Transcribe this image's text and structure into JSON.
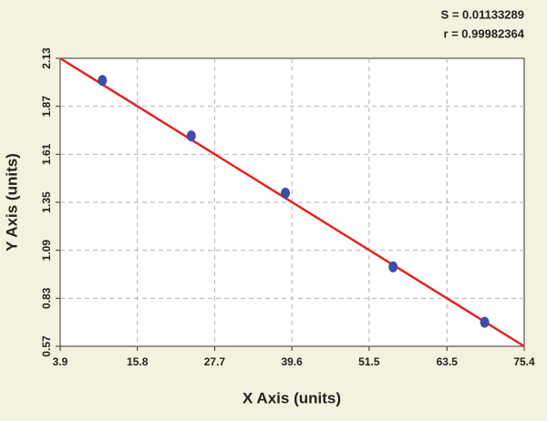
{
  "chart_data": {
    "type": "scatter",
    "annotations": [
      "S = 0.01133289",
      "r = 0.99982364"
    ],
    "x_label": "X Axis (units)",
    "y_label": "Y Axis (units)",
    "xlim": [
      3.9,
      75.4
    ],
    "ylim": [
      0.57,
      2.13
    ],
    "xticks": [
      3.9,
      15.8,
      27.7,
      39.6,
      51.5,
      63.5,
      75.4
    ],
    "yticks": [
      0.57,
      0.83,
      1.09,
      1.35,
      1.61,
      1.87,
      2.13
    ],
    "grid": true,
    "series": [
      {
        "type": "scatter",
        "color": "#3b4ea6",
        "x": [
          10.4,
          24.1,
          38.6,
          55.2,
          69.3
        ],
        "values": [
          2.01,
          1.71,
          1.4,
          1.0,
          0.7
        ]
      },
      {
        "type": "line",
        "color": "#e3241f",
        "x": [
          3.9,
          75.4
        ],
        "values": [
          2.13,
          0.57
        ]
      }
    ]
  }
}
